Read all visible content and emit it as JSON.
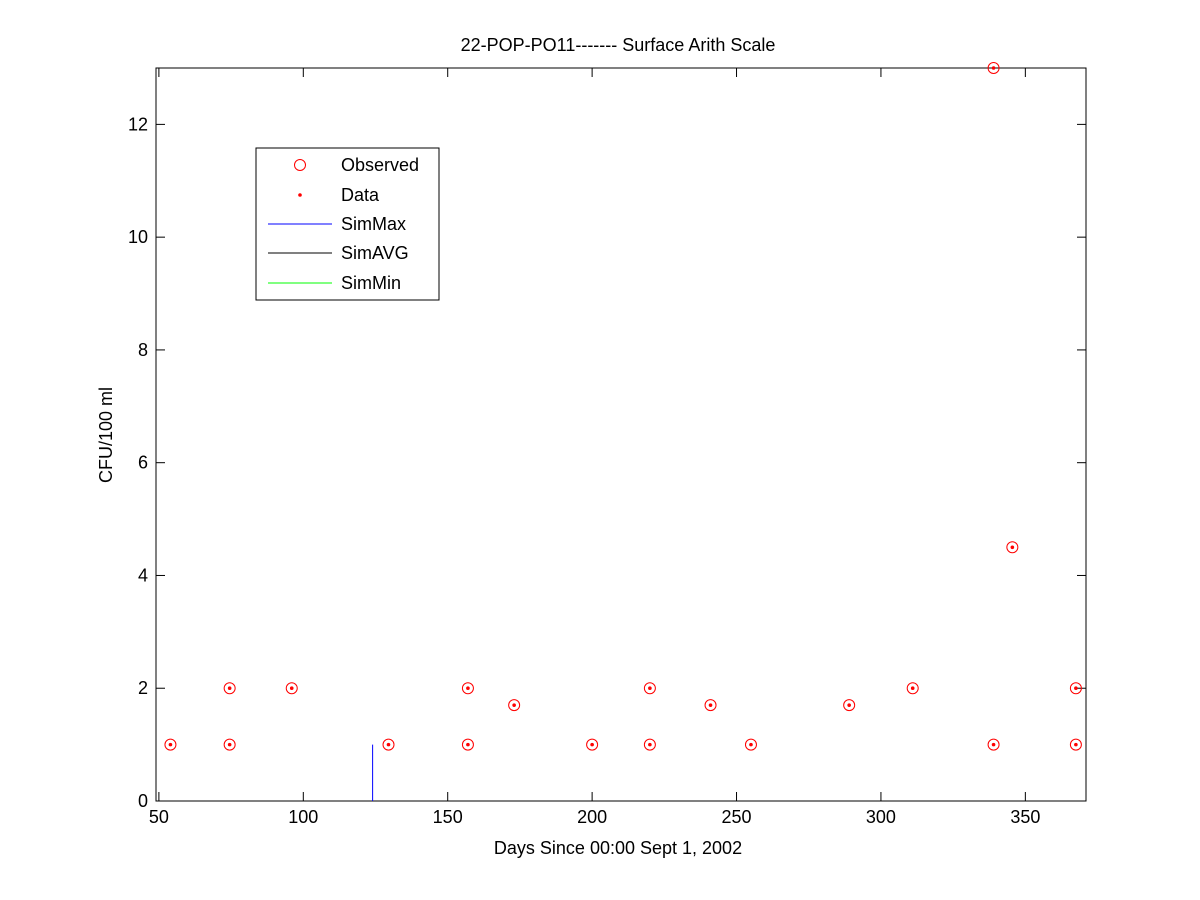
{
  "chart_data": {
    "type": "scatter",
    "title": "22-POP-PO11------- Surface Arith Scale",
    "xlabel": "Days Since 00:00 Sept 1, 2002",
    "ylabel": "CFU/100 ml",
    "xlim": [
      49,
      371
    ],
    "ylim": [
      0,
      13
    ],
    "xticks": [
      50,
      100,
      150,
      200,
      250,
      300,
      350
    ],
    "yticks": [
      0,
      2,
      4,
      6,
      8,
      10,
      12
    ],
    "grid": false,
    "legend": {
      "placement": "top-left",
      "entries": [
        {
          "label": "Observed",
          "marker": "circle",
          "color": "#ff0000"
        },
        {
          "label": "Data",
          "marker": "dot",
          "color": "#ff0000"
        },
        {
          "label": "SimMax",
          "marker": "line",
          "color": "#0000ff"
        },
        {
          "label": "SimAVG",
          "marker": "line",
          "color": "#000000"
        },
        {
          "label": "SimMin",
          "marker": "line",
          "color": "#00ff00"
        }
      ]
    },
    "series": [
      {
        "name": "Observed",
        "marker": "circle",
        "color": "#ff0000",
        "x": [
          54,
          74.5,
          74.5,
          96,
          129.5,
          157,
          157,
          173,
          200,
          220,
          220,
          241,
          255,
          289,
          311,
          339,
          339,
          345.5,
          367.5,
          367.5
        ],
        "y": [
          1,
          2,
          1,
          2,
          1,
          2,
          1,
          1.7,
          1,
          2,
          1,
          1.7,
          1,
          1.7,
          2,
          13,
          1,
          4.5,
          2,
          1
        ]
      },
      {
        "name": "Data",
        "marker": "dot",
        "color": "#ff0000",
        "x": [
          54,
          74.5,
          74.5,
          96,
          129.5,
          157,
          157,
          173,
          200,
          220,
          220,
          241,
          255,
          289,
          311,
          339,
          339,
          345.5,
          367.5,
          367.5
        ],
        "y": [
          1,
          2,
          1,
          2,
          1,
          2,
          1,
          1.7,
          1,
          2,
          1,
          1.7,
          1,
          1.7,
          2,
          13,
          1,
          4.5,
          2,
          1
        ]
      },
      {
        "name": "SimMax",
        "marker": "line",
        "color": "#0000ff",
        "x": [
          124,
          124
        ],
        "y": [
          0,
          1
        ]
      }
    ]
  }
}
